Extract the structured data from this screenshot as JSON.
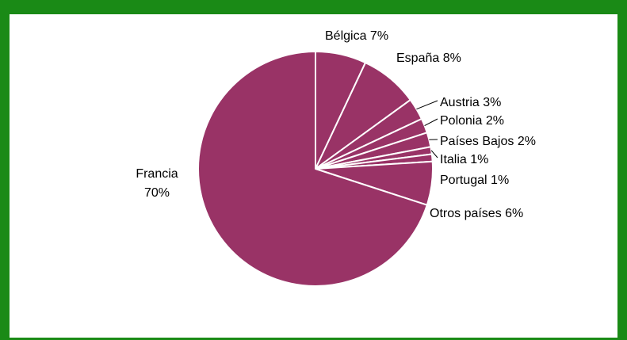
{
  "chart_data": {
    "type": "pie",
    "start_angle_from_top_clockwise_deg": 0,
    "slices": [
      {
        "name": "Bélgica",
        "value": 7,
        "label": "Bélgica 7%"
      },
      {
        "name": "España",
        "value": 8,
        "label": "España 8%"
      },
      {
        "name": "Austria",
        "value": 3,
        "label": "Austria 3%"
      },
      {
        "name": "Polonia",
        "value": 2,
        "label": "Polonia 2%"
      },
      {
        "name": "Países Bajos",
        "value": 2,
        "label": "Países Bajos 2%"
      },
      {
        "name": "Italia",
        "value": 1,
        "label": "Italia 1%"
      },
      {
        "name": "Portugal",
        "value": 1,
        "label": "Portugal 1%"
      },
      {
        "name": "Otros países",
        "value": 6,
        "label": "Otros países 6%"
      },
      {
        "name": "Francia",
        "value": 70,
        "label_lines": [
          "Francia",
          "70%"
        ]
      }
    ],
    "colors": {
      "slice_fill": "#993366",
      "slice_stroke": "#ffffff",
      "frame_border": "#1a8a16",
      "leader_line": "#000000"
    }
  }
}
